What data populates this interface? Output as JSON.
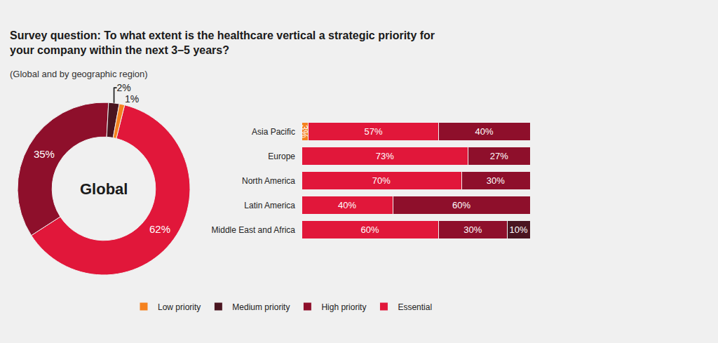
{
  "chart_data": [
    {
      "type": "pie",
      "title": "Survey question: To what extent is the healthcare vertical a strategic priority for your company within the next 3–5 years?",
      "subtitle": "(Global and by geographic region)",
      "annotation": "Global",
      "categories": [
        "Essential",
        "High priority",
        "Medium priority",
        "Low priority"
      ],
      "values": [
        62,
        35,
        2,
        1
      ],
      "value_labels": [
        "62%",
        "35%",
        "2%",
        "1%"
      ],
      "colors": [
        "#e1173a",
        "#8e0f2b",
        "#4a1520",
        "#f5821f"
      ],
      "data_labels": true,
      "legend": "bottom"
    },
    {
      "type": "bar",
      "orientation": "horizontal",
      "stacked": true,
      "categories": [
        "Asia Pacific",
        "Europe",
        "North America",
        "Latin America",
        "Middle East and Africa"
      ],
      "series": [
        {
          "name": "Low priority",
          "color": "#f5821f",
          "values": [
            3,
            null,
            null,
            null,
            null
          ],
          "value_labels": [
            "3%",
            null,
            null,
            null,
            null
          ]
        },
        {
          "name": "Essential",
          "color": "#e1173a",
          "values": [
            57,
            73,
            70,
            40,
            60
          ],
          "value_labels": [
            "57%",
            "73%",
            "70%",
            "40%",
            "60%"
          ]
        },
        {
          "name": "High priority",
          "color": "#8e0f2b",
          "values": [
            40,
            27,
            30,
            60,
            30
          ],
          "value_labels": [
            "40%",
            "27%",
            "30%",
            "60%",
            "30%"
          ]
        },
        {
          "name": "Medium priority",
          "color": "#4a1520",
          "values": [
            null,
            null,
            null,
            null,
            10
          ],
          "value_labels": [
            null,
            null,
            null,
            null,
            "10%"
          ]
        }
      ],
      "xlim": [
        0,
        100
      ],
      "tick_labels": "y",
      "data_labels": true
    }
  ]
}
